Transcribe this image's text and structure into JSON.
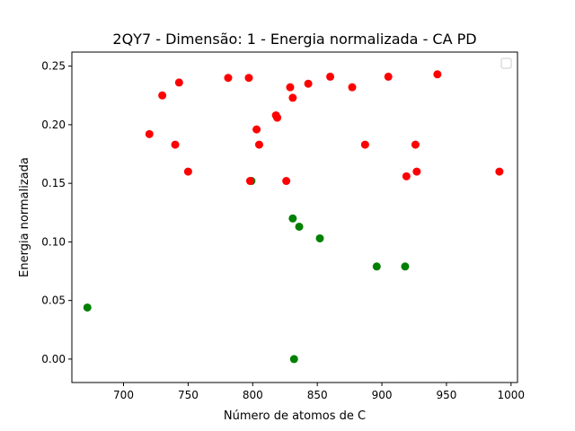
{
  "chart_data": {
    "type": "scatter",
    "title": "2QY7 - Dimensão: 1 - Energia normalizada - CA PD",
    "xlabel": "Número de atomos de C",
    "ylabel": "Energia normalizada",
    "xlim": [
      660,
      1005
    ],
    "ylim": [
      -0.02,
      0.262
    ],
    "xticks": [
      700,
      750,
      800,
      850,
      900,
      950,
      1000
    ],
    "yticks": [
      0.0,
      0.05,
      0.1,
      0.15,
      0.2,
      0.25
    ],
    "ytick_labels": [
      "0.00",
      "0.05",
      "0.10",
      "0.15",
      "0.20",
      "0.25"
    ],
    "grid": false,
    "legend": "top-right",
    "series": [
      {
        "color": "#008000",
        "x": [
          672,
          799,
          831,
          836,
          852,
          896,
          918,
          832
        ],
        "y": [
          0.044,
          0.152,
          0.12,
          0.113,
          0.103,
          0.079,
          0.079,
          0.0
        ]
      },
      {
        "color": "#ff0000",
        "x": [
          720,
          730,
          740,
          743,
          750,
          781,
          797,
          798,
          803,
          805,
          818,
          819,
          826,
          829,
          831,
          843,
          860,
          877,
          887,
          905,
          919,
          926,
          927,
          943,
          991
        ],
        "y": [
          0.192,
          0.225,
          0.183,
          0.236,
          0.16,
          0.24,
          0.24,
          0.152,
          0.196,
          0.183,
          0.208,
          0.206,
          0.152,
          0.232,
          0.223,
          0.235,
          0.241,
          0.232,
          0.183,
          0.241,
          0.156,
          0.183,
          0.16,
          0.243,
          0.16
        ]
      }
    ]
  }
}
